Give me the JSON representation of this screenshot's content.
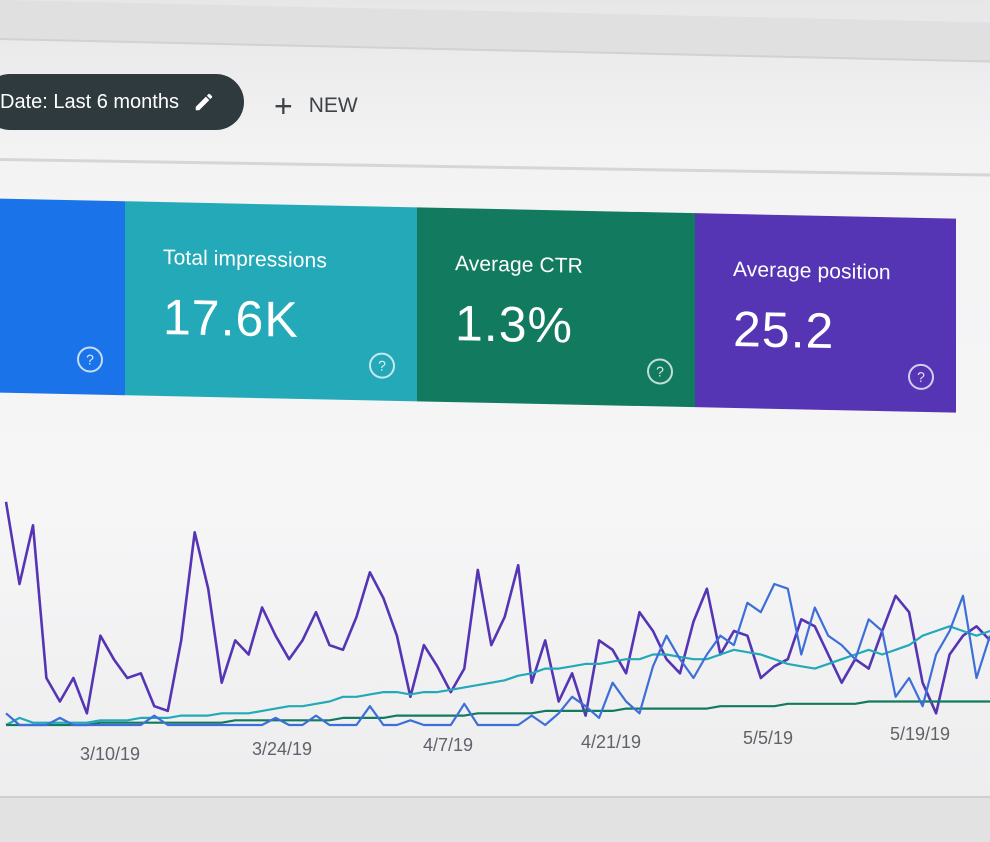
{
  "toolbar": {
    "date_filter_label": "Date: Last 6 months",
    "date_filter_edit_icon": "pencil-icon",
    "new_label": "NEW",
    "new_icon": "plus-icon"
  },
  "metrics": [
    {
      "id": "clicks",
      "title": "",
      "value": "",
      "color": "#1a73e8"
    },
    {
      "id": "impressions",
      "title": "Total impressions",
      "value": "17.6K",
      "color": "#23a9b8"
    },
    {
      "id": "ctr",
      "title": "Average CTR",
      "value": "1.3%",
      "color": "#127a5f"
    },
    {
      "id": "position",
      "title": "Average position",
      "value": "25.2",
      "color": "#5535b4"
    }
  ],
  "help_glyph": "?",
  "chart_data": {
    "type": "line",
    "x_tick_labels": [
      "3/10/19",
      "3/24/19",
      "4/7/19",
      "4/21/19",
      "5/5/19",
      "5/19/19"
    ],
    "grid": false,
    "legend": "none",
    "series": [
      {
        "color": "#5535b4",
        "values": [
          95,
          60,
          85,
          20,
          10,
          20,
          5,
          38,
          28,
          20,
          22,
          8,
          6,
          36,
          82,
          58,
          18,
          36,
          30,
          50,
          38,
          28,
          36,
          48,
          34,
          32,
          46,
          65,
          54,
          38,
          12,
          34,
          25,
          14,
          24,
          66,
          34,
          46,
          68,
          18,
          36,
          10,
          22,
          4,
          36,
          32,
          22,
          48,
          40,
          28,
          22,
          44,
          58,
          30,
          40,
          38,
          20,
          25,
          28,
          45,
          42,
          30,
          18,
          28,
          24,
          40,
          55,
          48,
          18,
          5,
          30,
          38,
          42,
          36
        ]
      },
      {
        "color": "#23a9b8",
        "values": [
          0,
          3,
          1,
          1,
          1,
          1,
          1,
          2,
          2,
          2,
          3,
          3,
          3,
          4,
          4,
          4,
          5,
          5,
          5,
          6,
          7,
          8,
          8,
          9,
          10,
          12,
          12,
          13,
          14,
          14,
          13,
          14,
          14,
          15,
          16,
          17,
          18,
          19,
          21,
          22,
          24,
          24,
          25,
          26,
          26,
          27,
          28,
          28,
          30,
          30,
          29,
          28,
          28,
          30,
          32,
          31,
          30,
          28,
          26,
          25,
          24,
          26,
          28,
          30,
          32,
          30,
          32,
          34,
          38,
          40,
          42,
          40,
          38,
          40
        ]
      },
      {
        "color": "#127a5f",
        "values": [
          0,
          0,
          0,
          0,
          0,
          0,
          0,
          1,
          1,
          1,
          1,
          1,
          1,
          1,
          1,
          1,
          1,
          2,
          2,
          2,
          2,
          2,
          2,
          2,
          2,
          3,
          3,
          3,
          3,
          4,
          4,
          4,
          4,
          4,
          4,
          5,
          5,
          5,
          5,
          5,
          6,
          6,
          6,
          6,
          6,
          6,
          7,
          7,
          7,
          7,
          7,
          7,
          7,
          8,
          8,
          8,
          8,
          8,
          9,
          9,
          9,
          9,
          9,
          9,
          10,
          10,
          10,
          10,
          10,
          10,
          10,
          10,
          10,
          10
        ]
      },
      {
        "color": "#3d6fd9",
        "values": [
          5,
          0,
          0,
          0,
          3,
          0,
          0,
          0,
          0,
          0,
          0,
          4,
          0,
          0,
          0,
          0,
          0,
          0,
          0,
          0,
          3,
          0,
          0,
          4,
          0,
          0,
          0,
          8,
          0,
          0,
          2,
          0,
          0,
          0,
          9,
          0,
          0,
          0,
          0,
          4,
          0,
          5,
          12,
          8,
          3,
          18,
          10,
          5,
          25,
          38,
          28,
          20,
          30,
          38,
          34,
          52,
          48,
          60,
          58,
          30,
          50,
          38,
          34,
          28,
          45,
          40,
          12,
          20,
          8,
          30,
          40,
          55,
          20,
          38
        ]
      }
    ]
  }
}
